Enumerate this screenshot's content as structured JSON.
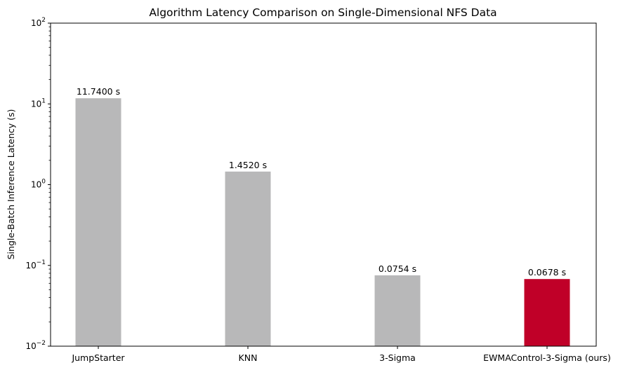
{
  "chart_data": {
    "type": "bar",
    "title": "Algorithm Latency Comparison on Single-Dimensional NFS Data",
    "xlabel": "",
    "ylabel": "Single-Batch Inference Latency (s)",
    "yscale": "log",
    "ylim": [
      0.01,
      100
    ],
    "grid": false,
    "categories": [
      "JumpStarter",
      "KNN",
      "3-Sigma",
      "EWMAControl-3-Sigma (ours)"
    ],
    "values": [
      11.74,
      1.452,
      0.0754,
      0.0678
    ],
    "value_labels": [
      "11.7400 s",
      "1.4520 s",
      "0.0754 s",
      "0.0678 s"
    ],
    "colors": [
      "#b8b8b9",
      "#b8b8b9",
      "#b8b8b9",
      "#c00028"
    ],
    "ytick_base": "10",
    "ytick_exponents": [
      "−2",
      "−1",
      "0",
      "1",
      "2"
    ]
  }
}
